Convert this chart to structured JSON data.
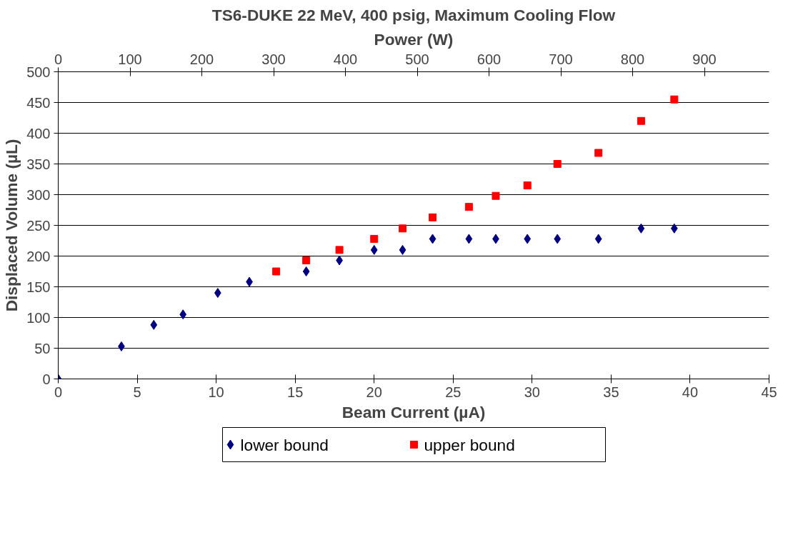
{
  "chart_data": {
    "type": "scatter",
    "title": "TS6-DUKE 22 MeV, 400 psig, Maximum Cooling Flow",
    "xlabel": "Beam Current (µA)",
    "ylabel": "Displaced Volume (µL)",
    "x2label": "Power (W)",
    "xlim": [
      0,
      45
    ],
    "xticks": [
      0,
      5,
      10,
      15,
      20,
      25,
      30,
      35,
      40,
      45
    ],
    "x2lim": [
      0,
      990
    ],
    "x2ticks": [
      0,
      100,
      200,
      300,
      400,
      500,
      600,
      700,
      800,
      900
    ],
    "ylim": [
      0,
      500
    ],
    "yticks": [
      0,
      50,
      100,
      150,
      200,
      250,
      300,
      350,
      400,
      450,
      500
    ],
    "grid": "y",
    "legend": "bottom",
    "series": [
      {
        "name": "lower bound",
        "color": "#000080",
        "marker": "diamond",
        "x": [
          0,
          4.0,
          6.05,
          7.9,
          10.1,
          12.1,
          15.7,
          17.8,
          20.0,
          21.8,
          23.7,
          26.0,
          27.7,
          29.7,
          31.6,
          34.2,
          36.9,
          39.0
        ],
        "values": [
          0,
          53,
          88,
          105,
          140,
          158,
          175,
          193,
          210,
          210,
          228,
          228,
          228,
          228,
          228,
          228,
          245,
          245
        ]
      },
      {
        "name": "upper bound",
        "color": "#ff0000",
        "marker": "square",
        "x": [
          13.8,
          15.7,
          17.8,
          20.0,
          21.8,
          23.7,
          26.0,
          27.7,
          29.7,
          31.6,
          34.2,
          36.9,
          39.0
        ],
        "values": [
          175,
          193,
          210,
          228,
          245,
          263,
          280,
          298,
          315,
          350,
          368,
          420,
          455
        ]
      }
    ]
  }
}
